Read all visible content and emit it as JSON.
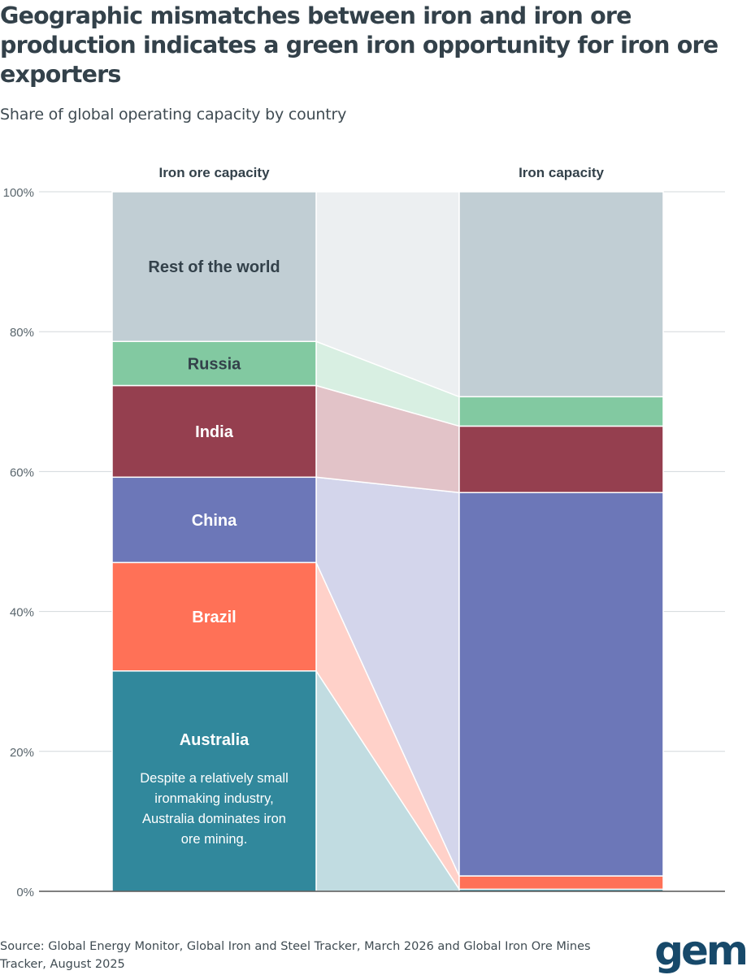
{
  "title": "Geographic mismatches between iron and iron ore production indicates a green iron opportunity for iron ore exporters",
  "subtitle": "Share of global operating capacity by country",
  "source": "Source: Global Energy Monitor, Global Iron and Steel Tracker, March 2026 and Global Iron Ore Mines Tracker, August 2025",
  "logo_text": "gem",
  "chart_data": {
    "type": "bar",
    "stacked": true,
    "unit": "%",
    "categories": [
      "Iron ore capacity",
      "Iron capacity"
    ],
    "ylim": [
      0,
      100
    ],
    "yticks": [
      0,
      20,
      40,
      60,
      80,
      100
    ],
    "ytick_labels": [
      "0%",
      "20%",
      "40%",
      "60%",
      "80%",
      "100%"
    ],
    "grid": true,
    "series": [
      {
        "name": "Australia",
        "values": [
          31.5,
          0.3
        ],
        "color": "#31889c",
        "label_color": "#ffffff"
      },
      {
        "name": "Brazil",
        "values": [
          15.5,
          1.9
        ],
        "color": "#ff7157",
        "label_color": "#ffffff"
      },
      {
        "name": "China",
        "values": [
          12.2,
          54.8
        ],
        "color": "#6c77b8",
        "label_color": "#ffffff"
      },
      {
        "name": "India",
        "values": [
          13.1,
          9.5
        ],
        "color": "#953f4f",
        "label_color": "#ffffff"
      },
      {
        "name": "Russia",
        "values": [
          6.3,
          4.2
        ],
        "color": "#82c9a1",
        "label_color": "#33414a"
      },
      {
        "name": "Rest of the world",
        "values": [
          21.4,
          29.3
        ],
        "color": "#c1ced4",
        "label_color": "#33414a"
      }
    ],
    "flow_colors": [
      "#c1dce1",
      "#ffd1c9",
      "#d3d5eb",
      "#e2c3c8",
      "#d8efe2",
      "#eceff1"
    ],
    "annotation": {
      "series": "Australia",
      "text": "Despite a relatively small ironmaking industry, Australia dominates iron ore mining."
    }
  }
}
